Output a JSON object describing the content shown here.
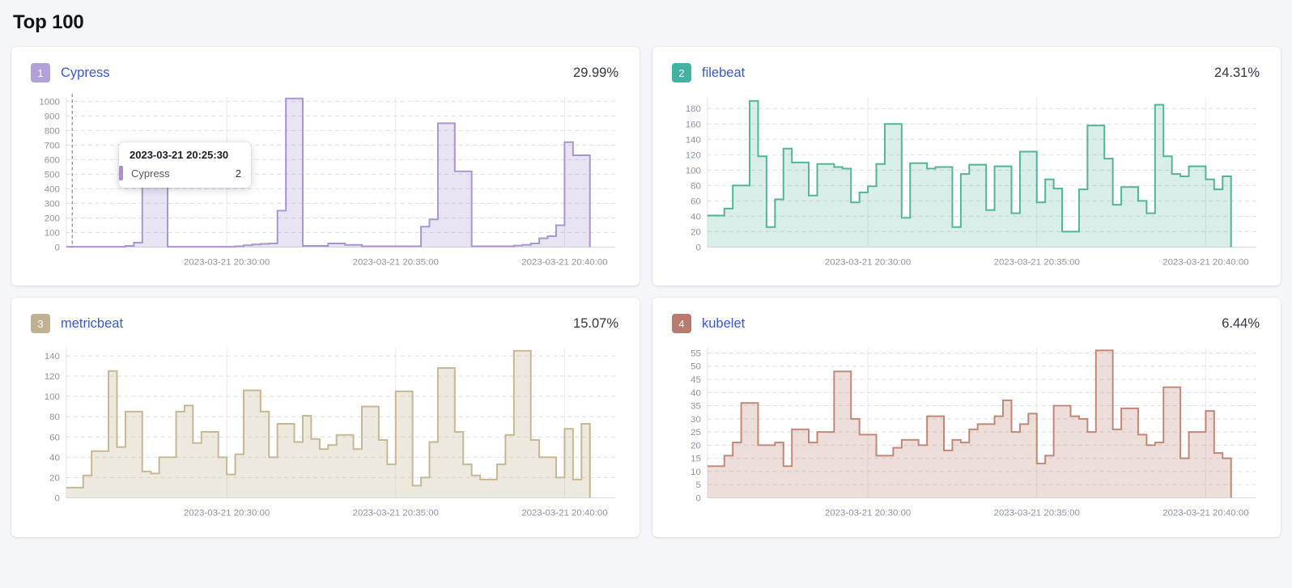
{
  "page": {
    "title": "Top 100"
  },
  "tooltip": {
    "title": "2023-03-21 20:25:30",
    "series": "Cypress",
    "value": "2",
    "marker_color": "#a78fd1"
  },
  "cards": [
    {
      "rank": "1",
      "name": "Cypress",
      "percent": "29.99%",
      "badge_color": "#b2a0d9"
    },
    {
      "rank": "2",
      "name": "filebeat",
      "percent": "24.31%",
      "badge_color": "#45b2a1"
    },
    {
      "rank": "3",
      "name": "metricbeat",
      "percent": "15.07%",
      "badge_color": "#c0b192"
    },
    {
      "rank": "4",
      "name": "kubelet",
      "percent": "6.44%",
      "badge_color": "#b87b6e"
    }
  ],
  "chart_data": [
    {
      "type": "area",
      "step": true,
      "title": "Cypress",
      "percent_of_total": "29.99%",
      "line_color": "#a995cf",
      "fill_color": "rgba(169,149,207,0.25)",
      "ylim": [
        0,
        1030
      ],
      "y_ticks": [
        0,
        100,
        200,
        300,
        400,
        500,
        600,
        700,
        800,
        900,
        1000
      ],
      "x_tick_labels": [
        "2023-03-21 20:30:00",
        "2023-03-21 20:35:00",
        "2023-03-21 20:40:00"
      ],
      "x_tick_indices": [
        19,
        39,
        59
      ],
      "x_interval_seconds": 15,
      "cursor_index": 0.7,
      "values": [
        2,
        2,
        2,
        2,
        2,
        2,
        2,
        8,
        30,
        500,
        500,
        500,
        2,
        2,
        2,
        2,
        2,
        2,
        2,
        2,
        5,
        12,
        18,
        22,
        25,
        250,
        1020,
        1020,
        8,
        8,
        8,
        25,
        25,
        15,
        15,
        5,
        5,
        5,
        5,
        5,
        5,
        5,
        140,
        190,
        850,
        850,
        520,
        520,
        5,
        5,
        5,
        5,
        5,
        10,
        15,
        25,
        60,
        75,
        150,
        720,
        630,
        630
      ]
    },
    {
      "type": "area",
      "step": true,
      "title": "filebeat",
      "percent_of_total": "24.31%",
      "line_color": "#54b399",
      "fill_color": "rgba(84,179,153,0.22)",
      "ylim": [
        0,
        195
      ],
      "y_ticks": [
        0,
        20,
        40,
        60,
        80,
        100,
        120,
        140,
        160,
        180
      ],
      "x_tick_labels": [
        "2023-03-21 20:30:00",
        "2023-03-21 20:35:00",
        "2023-03-21 20:40:00"
      ],
      "x_tick_indices": [
        19,
        39,
        59
      ],
      "x_interval_seconds": 15,
      "cursor_index": null,
      "values": [
        41,
        41,
        50,
        80,
        80,
        190,
        118,
        26,
        62,
        128,
        110,
        110,
        67,
        108,
        108,
        104,
        102,
        58,
        71,
        79,
        108,
        160,
        160,
        38,
        109,
        109,
        102,
        104,
        104,
        26,
        95,
        107,
        107,
        48,
        105,
        105,
        44,
        124,
        124,
        58,
        88,
        76,
        20,
        20,
        75,
        158,
        158,
        115,
        55,
        78,
        78,
        60,
        44,
        185,
        118,
        95,
        92,
        105,
        105,
        88,
        75,
        92
      ]
    },
    {
      "type": "area",
      "step": true,
      "title": "metricbeat",
      "percent_of_total": "15.07%",
      "line_color": "#c6b795",
      "fill_color": "rgba(198,183,149,0.30)",
      "ylim": [
        0,
        148
      ],
      "y_ticks": [
        0,
        20,
        40,
        60,
        80,
        100,
        120,
        140
      ],
      "x_tick_labels": [
        "2023-03-21 20:30:00",
        "2023-03-21 20:35:00",
        "2023-03-21 20:40:00"
      ],
      "x_tick_indices": [
        19,
        39,
        59
      ],
      "x_interval_seconds": 15,
      "cursor_index": null,
      "values": [
        10,
        10,
        22,
        46,
        46,
        125,
        50,
        85,
        85,
        26,
        24,
        40,
        40,
        85,
        91,
        54,
        65,
        65,
        40,
        23,
        43,
        106,
        106,
        85,
        40,
        73,
        73,
        55,
        81,
        58,
        48,
        52,
        62,
        62,
        48,
        90,
        90,
        57,
        33,
        105,
        105,
        12,
        20,
        55,
        128,
        128,
        65,
        33,
        22,
        18,
        18,
        33,
        62,
        145,
        145,
        57,
        40,
        40,
        20,
        68,
        18,
        73
      ]
    },
    {
      "type": "area",
      "step": true,
      "title": "kubelet",
      "percent_of_total": "6.44%",
      "line_color": "#c08877",
      "fill_color": "rgba(192,136,119,0.28)",
      "ylim": [
        0,
        57
      ],
      "y_ticks": [
        0,
        5,
        10,
        15,
        20,
        25,
        30,
        35,
        40,
        45,
        50,
        55
      ],
      "x_tick_labels": [
        "2023-03-21 20:30:00",
        "2023-03-21 20:35:00",
        "2023-03-21 20:40:00"
      ],
      "x_tick_indices": [
        19,
        39,
        59
      ],
      "x_interval_seconds": 15,
      "cursor_index": null,
      "values": [
        12,
        12,
        16,
        21,
        36,
        36,
        20,
        20,
        21,
        12,
        26,
        26,
        21,
        25,
        25,
        48,
        48,
        30,
        24,
        24,
        16,
        16,
        19,
        22,
        22,
        20,
        31,
        31,
        18,
        22,
        21,
        26,
        28,
        28,
        31,
        37,
        25,
        28,
        32,
        13,
        16,
        35,
        35,
        31,
        30,
        25,
        56,
        56,
        26,
        34,
        34,
        24,
        20,
        21,
        42,
        42,
        15,
        25,
        25,
        33,
        17,
        15
      ]
    }
  ]
}
